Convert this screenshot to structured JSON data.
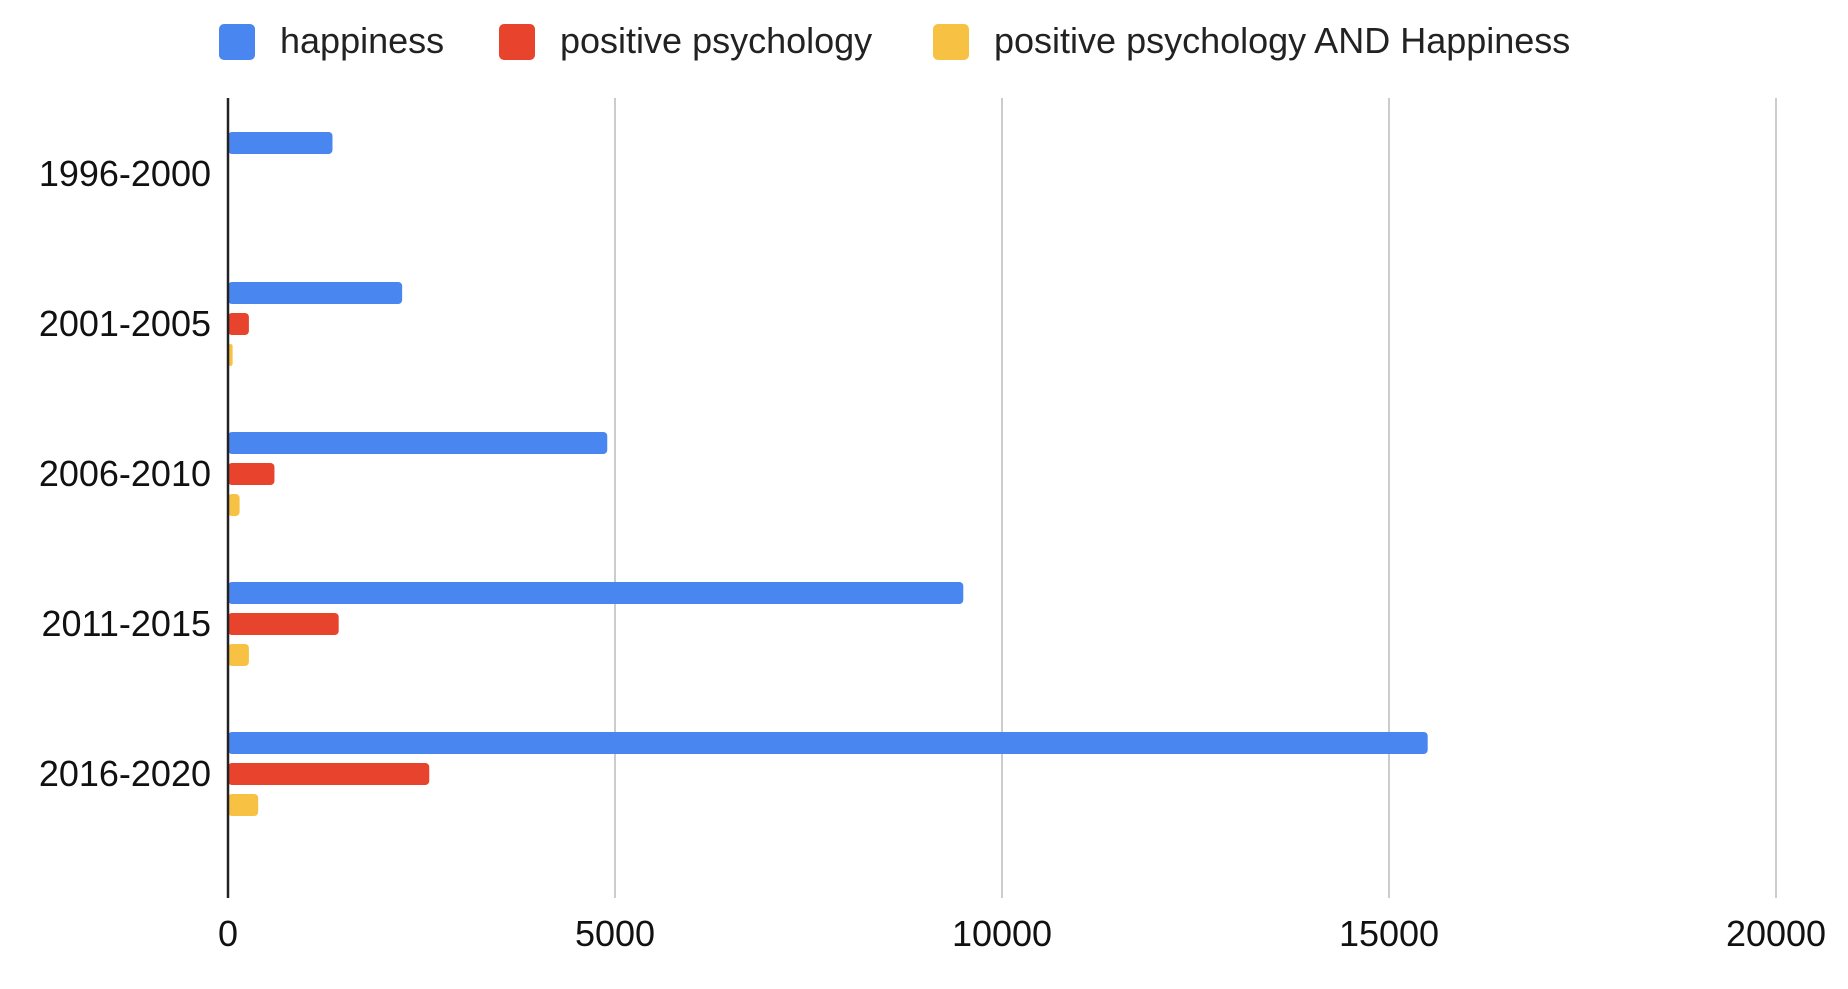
{
  "chart_data": {
    "type": "bar",
    "orientation": "horizontal",
    "title": "",
    "xlabel": "",
    "ylabel": "",
    "categories": [
      "1996-2000",
      "2001-2005",
      "2006-2010",
      "2011-2015",
      "2016-2020"
    ],
    "series": [
      {
        "name": "happiness",
        "color": "#4a86f0",
        "values": [
          1350,
          2250,
          4900,
          9500,
          15500
        ]
      },
      {
        "name": "positive psychology",
        "color": "#e8432d",
        "values": [
          0,
          270,
          600,
          1430,
          2600
        ]
      },
      {
        "name": "positive psychology AND Happiness",
        "color": "#f7c244",
        "values": [
          0,
          60,
          150,
          270,
          390
        ]
      }
    ],
    "xlim": [
      0,
      20000
    ],
    "x_ticks": [
      "0",
      "5000",
      "10000",
      "15000",
      "20000"
    ],
    "x_tick_values": [
      0,
      5000,
      10000,
      15000,
      20000
    ],
    "grid": "vertical",
    "legend_position": "top"
  }
}
